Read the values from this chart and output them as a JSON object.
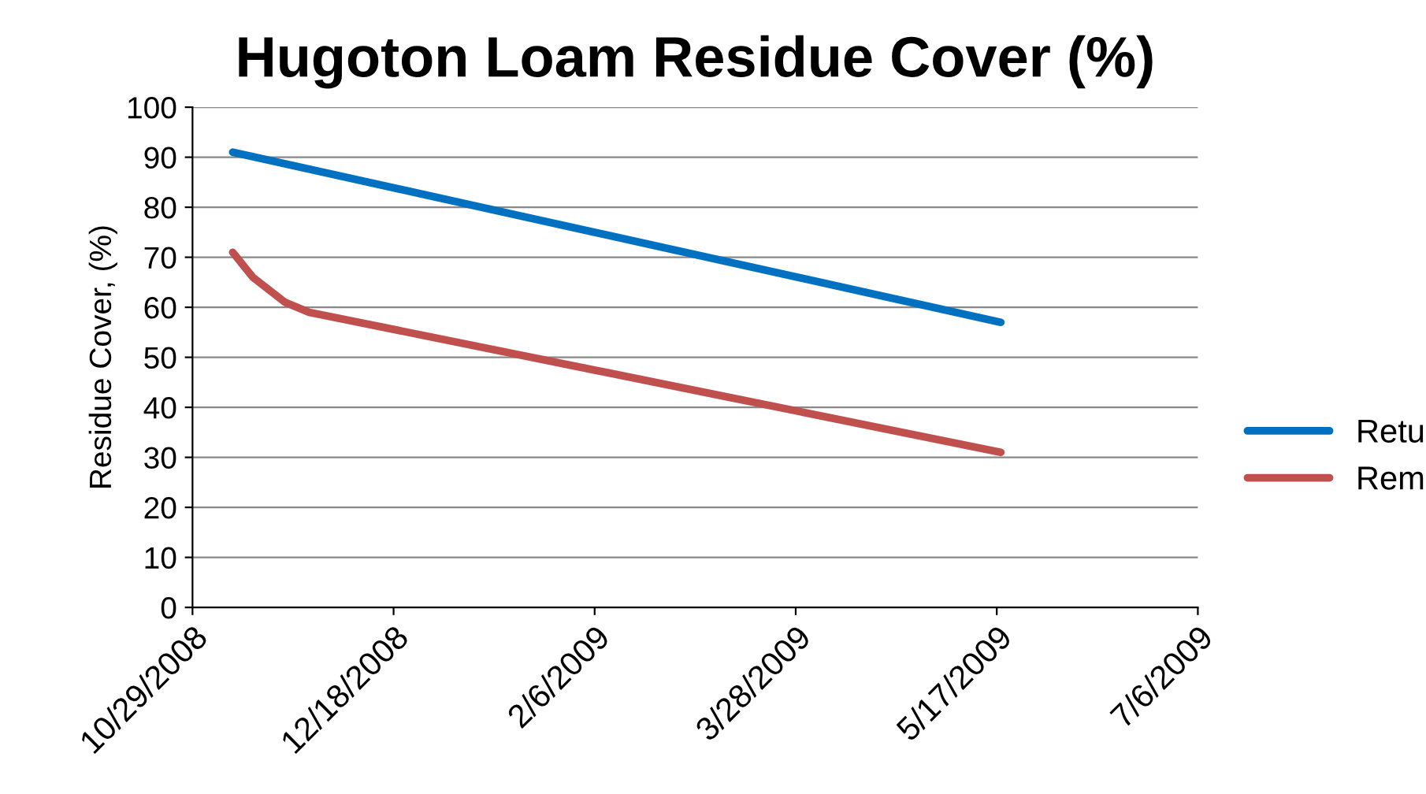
{
  "chart_data": {
    "type": "line",
    "title": "Hugoton Loam Residue Cover (%)",
    "ylabel": "Residue Cover, (%)",
    "series": [
      {
        "name": "Retu",
        "color": "#0070c0",
        "x": [
          "2008-11-08",
          "2009-05-18"
        ],
        "values": [
          91,
          57
        ]
      },
      {
        "name": "Rem",
        "color": "#c0504d",
        "x": [
          "2008-11-08",
          "2008-11-13",
          "2008-11-21",
          "2008-11-27",
          "2009-05-18"
        ],
        "values": [
          71,
          66,
          61,
          59,
          31
        ]
      }
    ],
    "xlim": [
      "2008-10-29",
      "2009-07-06"
    ],
    "xticks": [
      {
        "value": "2008-10-29",
        "label": "10/29/2008"
      },
      {
        "value": "2008-12-18",
        "label": "12/18/2008"
      },
      {
        "value": "2009-02-06",
        "label": "2/6/2009"
      },
      {
        "value": "2009-03-28",
        "label": "3/28/2009"
      },
      {
        "value": "2009-05-17",
        "label": "5/17/2009"
      },
      {
        "value": "2009-07-06",
        "label": "7/6/2009"
      }
    ],
    "ylim": [
      0,
      100
    ],
    "yticks": [
      0,
      10,
      20,
      30,
      40,
      50,
      60,
      70,
      80,
      90,
      100
    ],
    "grid": "y",
    "legend": "right",
    "marker": "none",
    "line_style": "solid"
  }
}
